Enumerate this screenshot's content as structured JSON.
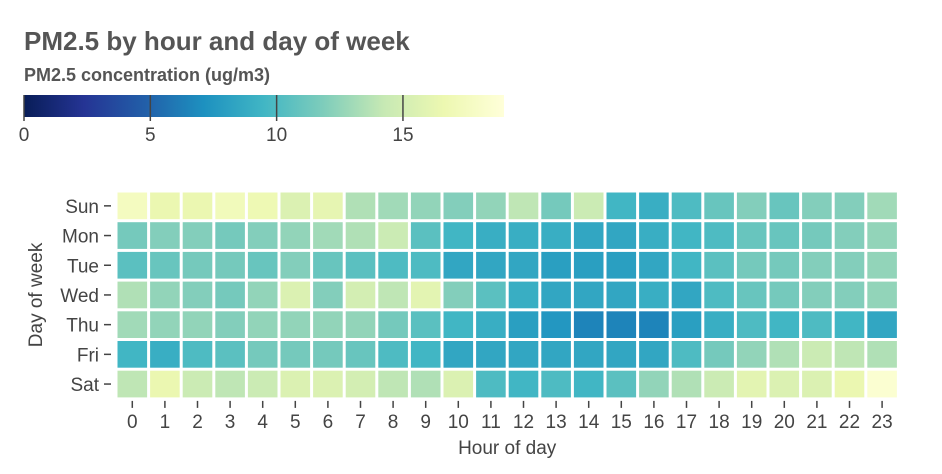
{
  "chart_data": {
    "type": "heatmap",
    "title": "PM2.5 by hour and day of week",
    "legend_title": "PM2.5 concentration (ug/m3)",
    "xlabel": "Hour of day",
    "ylabel": "Day of week",
    "x": [
      0,
      1,
      2,
      3,
      4,
      5,
      6,
      7,
      8,
      9,
      10,
      11,
      12,
      13,
      14,
      15,
      16,
      17,
      18,
      19,
      20,
      21,
      22,
      23
    ],
    "x_tick_labels": [
      "0",
      "1",
      "2",
      "3",
      "4",
      "5",
      "6",
      "7",
      "8",
      "9",
      "10",
      "11",
      "12",
      "13",
      "14",
      "15",
      "16",
      "17",
      "18",
      "19",
      "20",
      "21",
      "22",
      "23"
    ],
    "y": [
      "Sun",
      "Mon",
      "Tue",
      "Wed",
      "Thu",
      "Fri",
      "Sat"
    ],
    "colorscale": "YlGnBu (reversed: dark blue = low, light yellow = high)",
    "color_range": [
      0,
      19
    ],
    "legend_ticks": [
      0,
      5,
      10,
      15
    ],
    "legend_tick_labels": [
      "0",
      "5",
      "10",
      "15"
    ],
    "grid": false,
    "z": [
      [
        17.5,
        16.5,
        16.5,
        17.2,
        16.8,
        15.5,
        16.2,
        13.5,
        13,
        12.5,
        12,
        12.5,
        14,
        11.5,
        14.5,
        9.5,
        9,
        10,
        11,
        12,
        11,
        12,
        12,
        13
      ],
      [
        11.5,
        12,
        12,
        11.5,
        12,
        12.5,
        13,
        13.5,
        14.5,
        10.5,
        9.5,
        9,
        9,
        9,
        8.5,
        8.5,
        9,
        9.5,
        10,
        11,
        11,
        11.5,
        12,
        12.5
      ],
      [
        10.5,
        11,
        11.5,
        11.5,
        11,
        12,
        11,
        10.5,
        10,
        10,
        8.5,
        8.5,
        8.5,
        8,
        8,
        8,
        8.5,
        9.5,
        10.5,
        11.5,
        11.5,
        12,
        12,
        12.5
      ],
      [
        13.5,
        12.5,
        12,
        11.5,
        12.5,
        15.5,
        12,
        15,
        14,
        16,
        12,
        10.5,
        9,
        8.5,
        8.5,
        8.5,
        9,
        8.5,
        10,
        11,
        11.5,
        12,
        12,
        12.5
      ],
      [
        13,
        12.5,
        12.5,
        12,
        12.5,
        12.5,
        12.5,
        12.5,
        11.5,
        10.5,
        9.5,
        9,
        8,
        7.5,
        6.5,
        6.5,
        6.5,
        8,
        9,
        10,
        9.5,
        10,
        9.5,
        8.5
      ],
      [
        9.5,
        9,
        10,
        10.5,
        11.5,
        11.5,
        11.5,
        11,
        10,
        9.5,
        8.5,
        8.5,
        8.5,
        8.5,
        8.5,
        8.5,
        8.5,
        10,
        11.5,
        12.5,
        13.5,
        14.5,
        14,
        13.5
      ],
      [
        14,
        16.5,
        14.5,
        14,
        14.5,
        15.5,
        15.5,
        15,
        14,
        13.5,
        15.5,
        10,
        9.5,
        10,
        9.5,
        10.5,
        12.5,
        13.5,
        14.5,
        16,
        15.5,
        15.5,
        16.5,
        18.5
      ]
    ]
  }
}
